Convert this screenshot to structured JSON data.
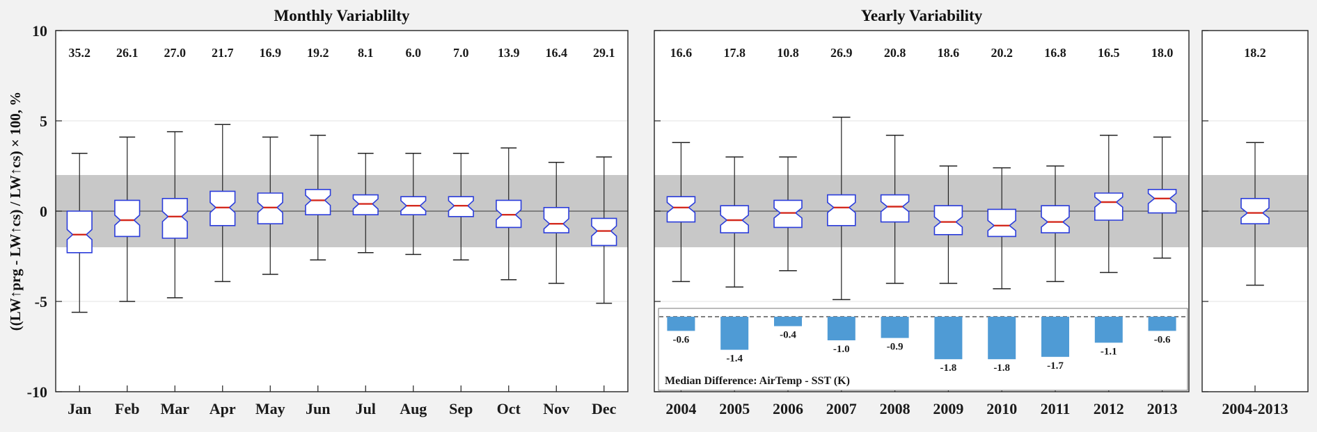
{
  "figure": {
    "ylabel": "((LW↑prg - LW↑cs) / LW↑cs) × 100, %",
    "colors": {
      "background": "#f2f2f2",
      "plot_bg": "#ffffff",
      "band": "#c8c8c8",
      "grid": "#e3e3e3",
      "zero_line": "#555555",
      "box_edge": "#2a3cdb",
      "median": "#d42a1e",
      "whisker": "#222222",
      "bar_fill": "#4f9bd5",
      "axis": "#222222"
    }
  },
  "chart_data": [
    {
      "type": "boxplot",
      "name": "monthly-variability",
      "title": "Monthly Variablilty",
      "ylabel": "((LW↑prg - LW↑cs) / LW↑cs) × 100, %",
      "ylim": [
        -10,
        10
      ],
      "yticks": [
        10,
        5,
        0,
        -5,
        -10
      ],
      "shaded_band": [
        -2,
        2
      ],
      "notch": true,
      "categories": [
        "Jan",
        "Feb",
        "Mar",
        "Apr",
        "May",
        "Jun",
        "Jul",
        "Aug",
        "Sep",
        "Oct",
        "Nov",
        "Dec"
      ],
      "top_labels": [
        "35.2",
        "26.1",
        "27.0",
        "21.7",
        "16.9",
        "19.2",
        "8.1",
        "6.0",
        "7.0",
        "13.9",
        "16.4",
        "29.1"
      ],
      "boxes": [
        {
          "whislo": -5.6,
          "q1": -2.3,
          "med": -1.3,
          "q3": 0.0,
          "whishi": 3.2
        },
        {
          "whislo": -5.0,
          "q1": -1.4,
          "med": -0.5,
          "q3": 0.6,
          "whishi": 4.1
        },
        {
          "whislo": -4.8,
          "q1": -1.5,
          "med": -0.3,
          "q3": 0.7,
          "whishi": 4.4
        },
        {
          "whislo": -3.9,
          "q1": -0.8,
          "med": 0.2,
          "q3": 1.1,
          "whishi": 4.8
        },
        {
          "whislo": -3.5,
          "q1": -0.7,
          "med": 0.2,
          "q3": 1.0,
          "whishi": 4.1
        },
        {
          "whislo": -2.7,
          "q1": -0.2,
          "med": 0.6,
          "q3": 1.2,
          "whishi": 4.2
        },
        {
          "whislo": -2.3,
          "q1": -0.2,
          "med": 0.4,
          "q3": 0.9,
          "whishi": 3.2
        },
        {
          "whislo": -2.4,
          "q1": -0.2,
          "med": 0.3,
          "q3": 0.8,
          "whishi": 3.2
        },
        {
          "whislo": -2.7,
          "q1": -0.3,
          "med": 0.3,
          "q3": 0.8,
          "whishi": 3.2
        },
        {
          "whislo": -3.8,
          "q1": -0.9,
          "med": -0.2,
          "q3": 0.6,
          "whishi": 3.5
        },
        {
          "whislo": -4.0,
          "q1": -1.2,
          "med": -0.7,
          "q3": 0.2,
          "whishi": 2.7
        },
        {
          "whislo": -5.1,
          "q1": -1.9,
          "med": -1.1,
          "q3": -0.4,
          "whishi": 3.0
        }
      ]
    },
    {
      "type": "boxplot",
      "name": "yearly-variability",
      "title": "Yearly Variability",
      "ylim": [
        -10,
        10
      ],
      "yticks": [
        10,
        5,
        0,
        -5,
        -10
      ],
      "shaded_band": [
        -2,
        2
      ],
      "notch": true,
      "categories": [
        "2004",
        "2005",
        "2006",
        "2007",
        "2008",
        "2009",
        "2010",
        "2011",
        "2012",
        "2013"
      ],
      "top_labels": [
        "16.6",
        "17.8",
        "10.8",
        "26.9",
        "20.8",
        "18.6",
        "20.2",
        "16.8",
        "16.5",
        "18.0"
      ],
      "boxes": [
        {
          "whislo": -3.9,
          "q1": -0.6,
          "med": 0.2,
          "q3": 0.8,
          "whishi": 3.8
        },
        {
          "whislo": -4.2,
          "q1": -1.2,
          "med": -0.5,
          "q3": 0.3,
          "whishi": 3.0
        },
        {
          "whislo": -3.3,
          "q1": -0.9,
          "med": -0.1,
          "q3": 0.6,
          "whishi": 3.0
        },
        {
          "whislo": -4.9,
          "q1": -0.8,
          "med": 0.2,
          "q3": 0.9,
          "whishi": 5.2
        },
        {
          "whislo": -4.0,
          "q1": -0.6,
          "med": 0.25,
          "q3": 0.9,
          "whishi": 4.2
        },
        {
          "whislo": -4.0,
          "q1": -1.3,
          "med": -0.6,
          "q3": 0.3,
          "whishi": 2.5
        },
        {
          "whislo": -4.3,
          "q1": -1.4,
          "med": -0.8,
          "q3": 0.1,
          "whishi": 2.4
        },
        {
          "whislo": -3.9,
          "q1": -1.2,
          "med": -0.6,
          "q3": 0.3,
          "whishi": 2.5
        },
        {
          "whislo": -3.4,
          "q1": -0.5,
          "med": 0.5,
          "q3": 1.0,
          "whishi": 4.2
        },
        {
          "whislo": -2.6,
          "q1": -0.1,
          "med": 0.7,
          "q3": 1.2,
          "whishi": 4.1
        }
      ],
      "inset": {
        "type": "bar",
        "caption": "Median Difference: AirTemp - SST (K)",
        "categories": [
          "2004",
          "2005",
          "2006",
          "2007",
          "2008",
          "2009",
          "2010",
          "2011",
          "2012",
          "2013"
        ],
        "values": [
          -0.6,
          -1.4,
          -0.4,
          -1.0,
          -0.9,
          -1.8,
          -1.8,
          -1.7,
          -1.1,
          -0.6
        ],
        "labels": [
          "-0.6",
          "-1.4",
          "-0.4",
          "-1.0",
          "-0.9",
          "-1.8",
          "-1.8",
          "-1.7",
          "-1.1",
          "-0.6"
        ]
      }
    },
    {
      "type": "boxplot",
      "name": "combined-2004-2013",
      "title": "",
      "ylim": [
        -10,
        10
      ],
      "yticks": [
        10,
        5,
        0,
        -5,
        -10
      ],
      "shaded_band": [
        -2,
        2
      ],
      "notch": true,
      "categories": [
        "2004-2013"
      ],
      "top_labels": [
        "18.2"
      ],
      "boxes": [
        {
          "whislo": -4.1,
          "q1": -0.7,
          "med": -0.1,
          "q3": 0.7,
          "whishi": 3.8
        }
      ]
    }
  ]
}
